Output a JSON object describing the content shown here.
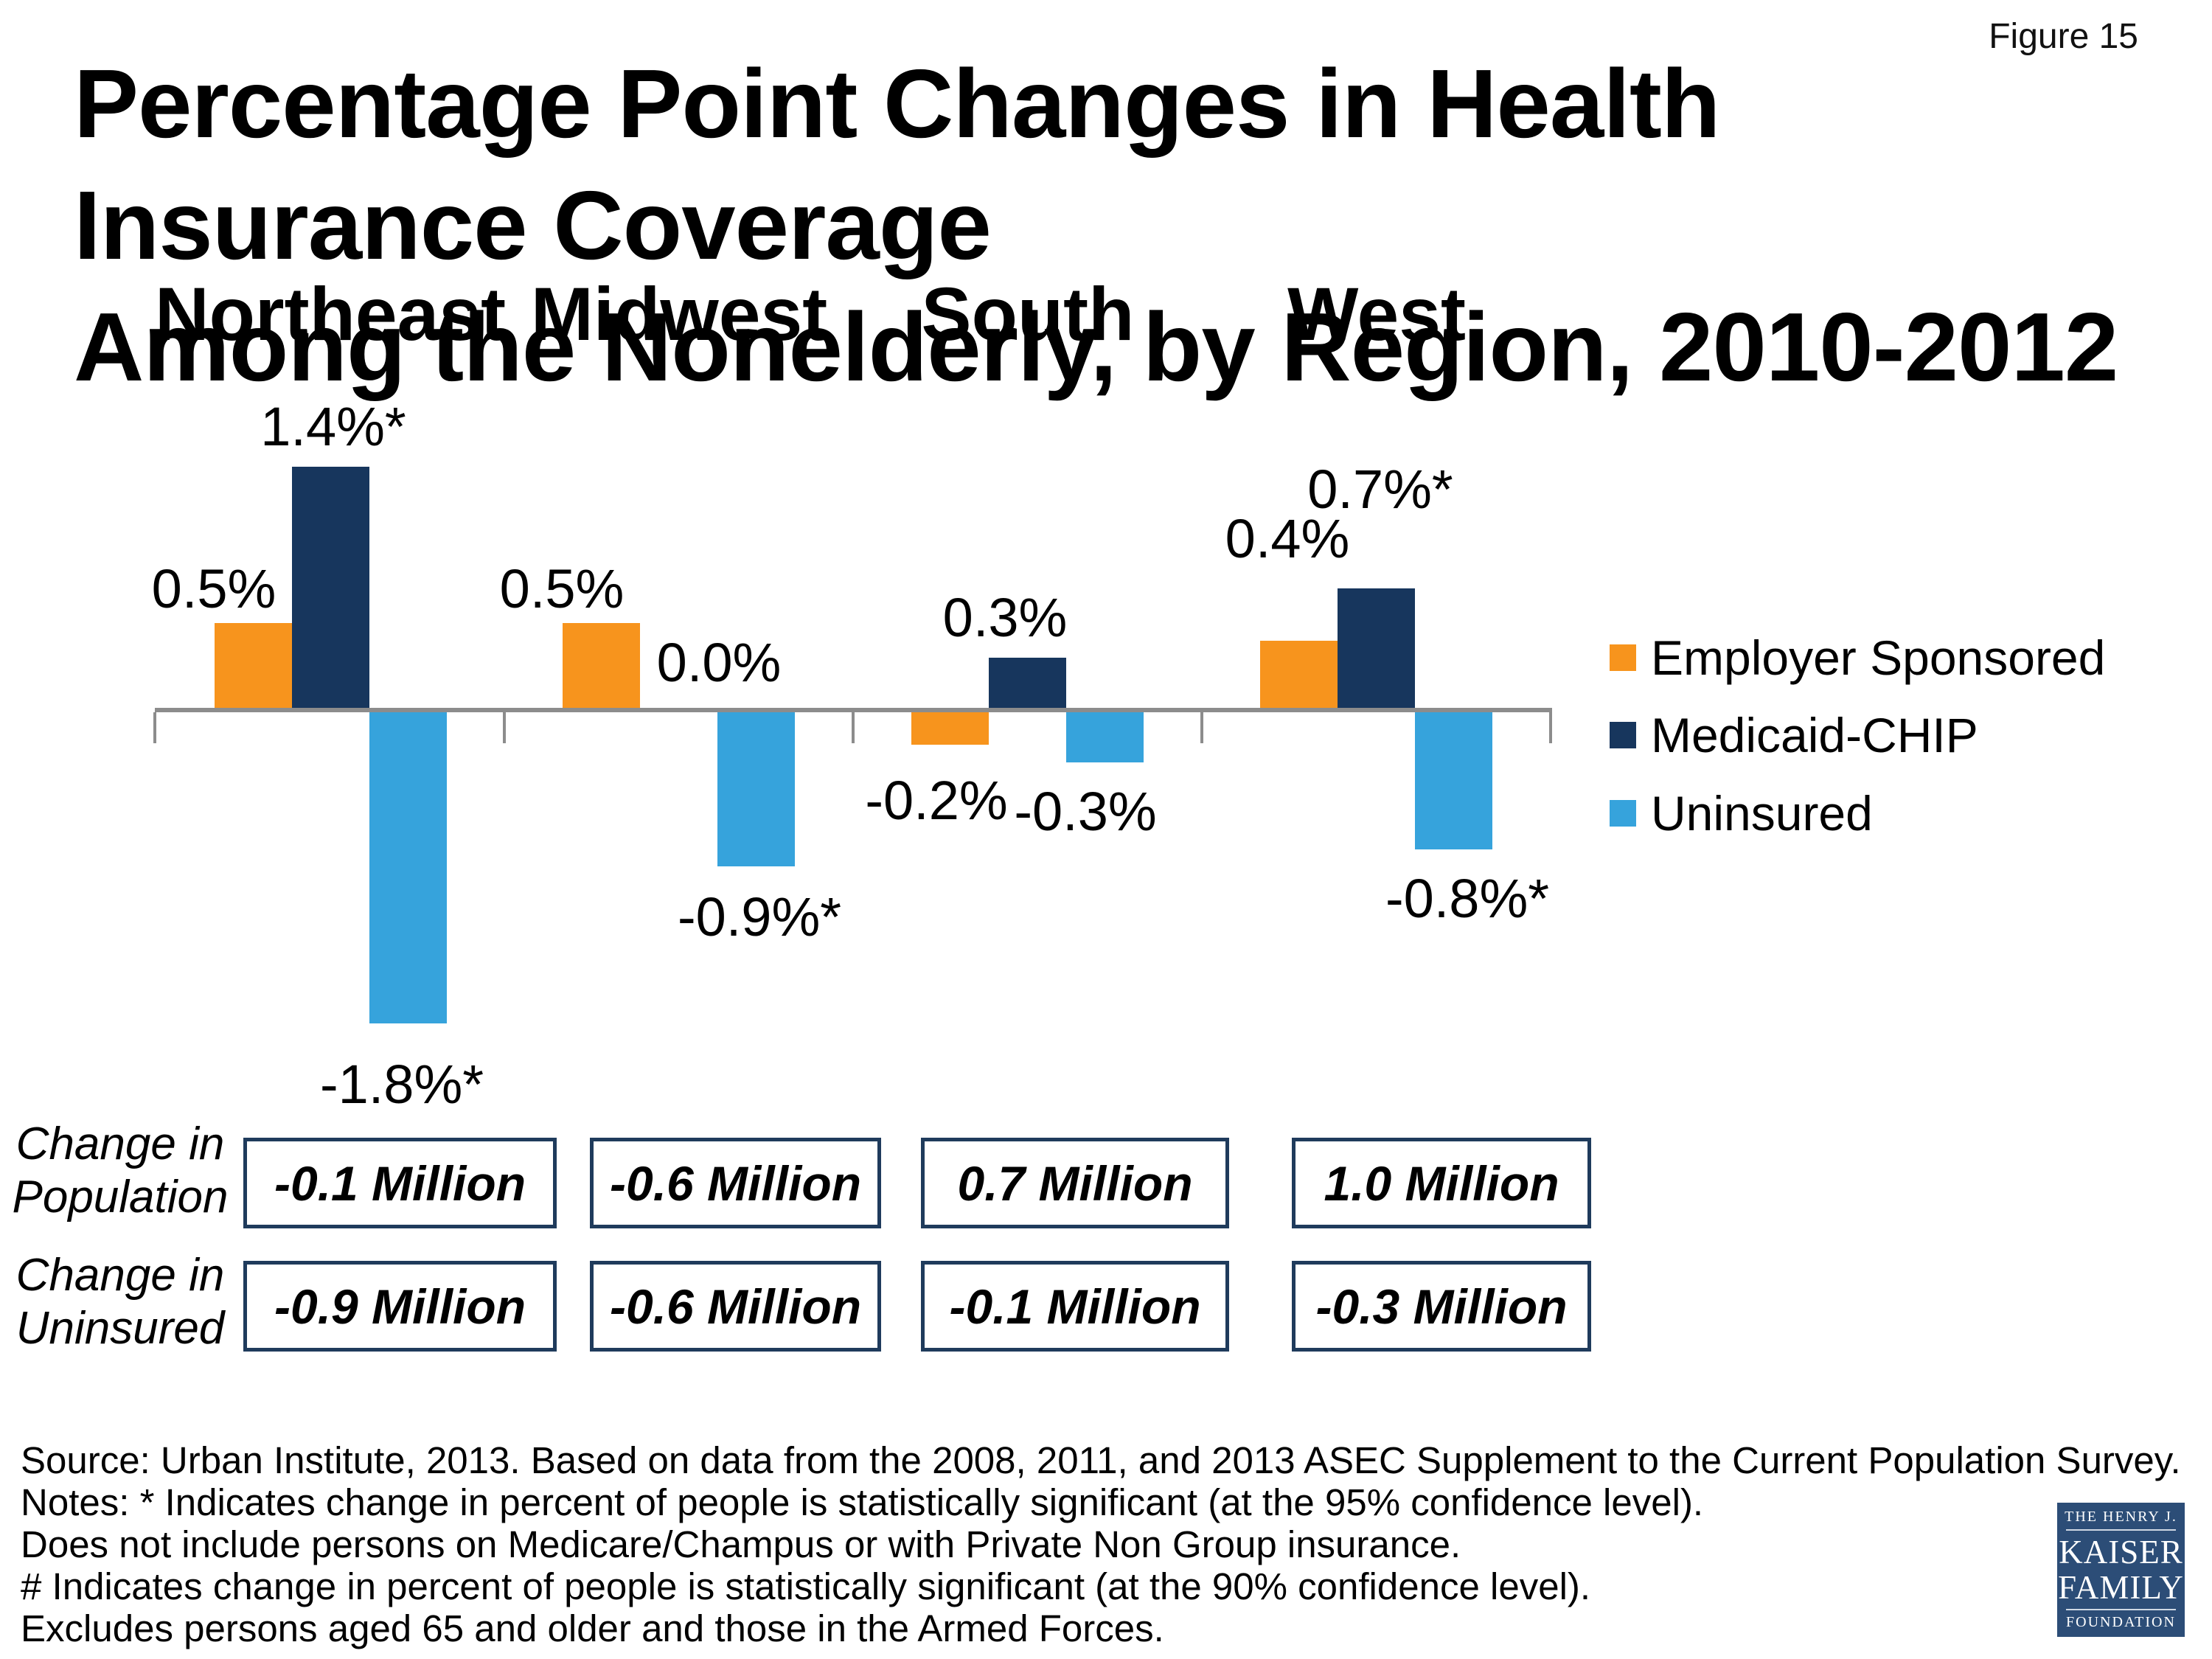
{
  "figure_label": "Figure 15",
  "title_lines": [
    "Percentage Point Changes in Health Insurance Coverage",
    "Among the Nonelderly, by Region, 2010-2012"
  ],
  "legend": [
    {
      "label": "Employer Sponsored",
      "color": "#F7941D"
    },
    {
      "label": "Medicaid-CHIP",
      "color": "#17365D"
    },
    {
      "label": "Uninsured",
      "color": "#36A3DC"
    }
  ],
  "chart_data": {
    "type": "bar",
    "title": "Percentage Point Changes in Health Insurance Coverage Among the Nonelderly, by Region, 2010-2012",
    "units": "percentage points",
    "categories": [
      "Northeast",
      "Midwest",
      "South",
      "West"
    ],
    "series": [
      {
        "name": "Employer Sponsored",
        "values": [
          0.5,
          0.5,
          -0.2,
          0.4
        ],
        "labels": [
          "0.5%",
          "0.5%",
          "-0.2%",
          "0.4%"
        ]
      },
      {
        "name": "Medicaid-CHIP",
        "values": [
          1.4,
          0.0,
          0.3,
          0.7
        ],
        "labels": [
          "1.4%*",
          "0.0%",
          "0.3%",
          "0.7%*"
        ]
      },
      {
        "name": "Uninsured",
        "values": [
          -1.8,
          -0.9,
          -0.3,
          -0.8
        ],
        "labels": [
          "-1.8%*",
          "-0.9%*",
          "-0.3%",
          "-0.8%*"
        ]
      }
    ],
    "ylim": [
      -2.0,
      1.6
    ],
    "grid": false,
    "legend_position": "right",
    "baseline": 0,
    "annotation_rows": [
      {
        "label_lines": [
          "Change in",
          "Population"
        ],
        "values": [
          "-0.1 Million",
          "-0.6 Million",
          "0.7 Million",
          "1.0 Million"
        ]
      },
      {
        "label_lines": [
          "Change in",
          "Uninsured"
        ],
        "values": [
          "-0.9 Million",
          "-0.6 Million",
          "-0.1 Million",
          "-0.3 Million"
        ]
      }
    ]
  },
  "footer_lines": [
    "Source: Urban Institute, 2013. Based on data from the 2008, 2011, and 2013 ASEC Supplement to the Current Population Survey.",
    "Notes: * Indicates change in percent of people is statistically significant (at the 95% confidence level).",
    "Does not include persons on Medicare/Champus or with Private Non Group insurance.",
    "# Indicates change in percent of people is statistically significant (at the 90% confidence level).",
    "Excludes persons aged 65 and older and those in the Armed Forces."
  ],
  "logo": {
    "line1": "THE HENRY J.",
    "line2": "KAISER",
    "line3": "FAMILY",
    "line4": "FOUNDATION"
  },
  "colors": {
    "employer_sponsored": "#F7941D",
    "medicaid_chip": "#17365D",
    "uninsured": "#36A3DC",
    "axis": "#8C8C8C",
    "box_border": "#1F3B5C",
    "logo_background": "#2C4D77"
  }
}
